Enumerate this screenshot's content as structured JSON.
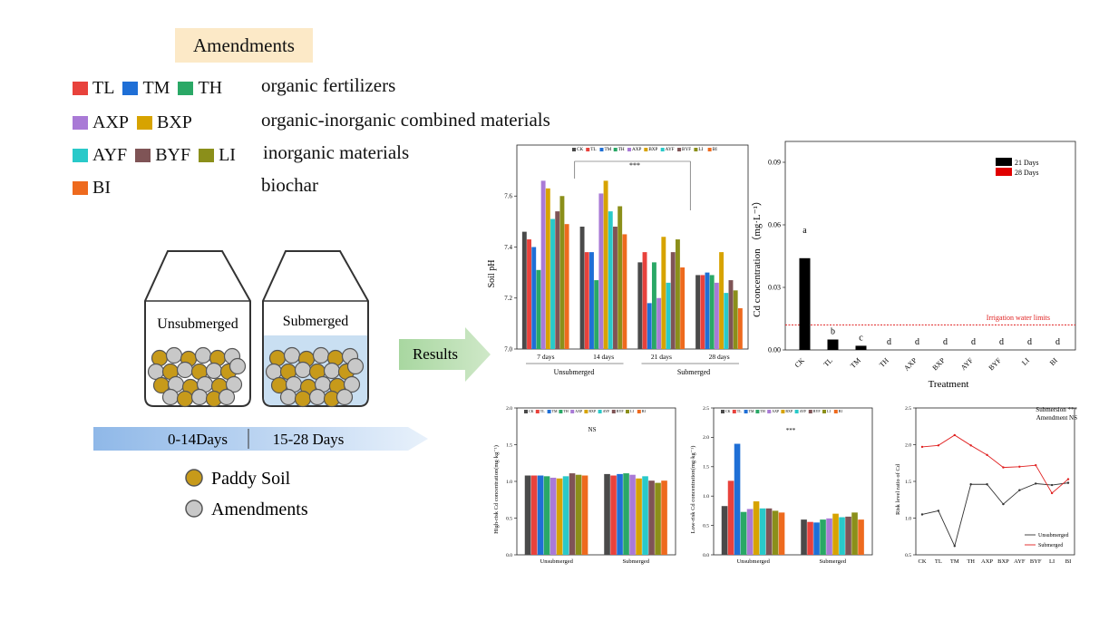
{
  "legend": {
    "title": "Amendments",
    "groups": [
      {
        "items": [
          {
            "label": "TL",
            "color": "#e8423c"
          },
          {
            "label": "TM",
            "color": "#1f6fd6"
          },
          {
            "label": "TH",
            "color": "#2aa866"
          }
        ],
        "description": "organic fertilizers"
      },
      {
        "items": [
          {
            "label": "AXP",
            "color": "#a97ad6"
          },
          {
            "label": "BXP",
            "color": "#d7a300"
          }
        ],
        "description": "organic-inorganic combined materials"
      },
      {
        "items": [
          {
            "label": "AYF",
            "color": "#29c9c9"
          },
          {
            "label": "BYF",
            "color": "#7f5456"
          },
          {
            "label": "LI",
            "color": "#8b8f1a"
          }
        ],
        "description": "inorganic materials"
      },
      {
        "items": [
          {
            "label": "BI",
            "color": "#ee6a1e"
          }
        ],
        "description": "biochar"
      }
    ]
  },
  "experiment": {
    "jar_left_label": "Unsubmerged",
    "jar_right_label": "Submerged",
    "timeline_left": "0-14Days",
    "timeline_right": "15-28 Days",
    "key_soil": "Paddy Soil",
    "key_amend": "Amendments",
    "results_label": "Results"
  },
  "chart_data": [
    {
      "type": "bar",
      "ylabel": "Soil pH",
      "ylim": [
        7.0,
        7.8
      ],
      "yticks": [
        "7.0",
        "7.2",
        "7.4",
        "7.6"
      ],
      "categories": [
        "7 days",
        "14 days",
        "21 days",
        "28 days"
      ],
      "group_labels": [
        "Unsubmerged",
        "Submerged"
      ],
      "significance": "***",
      "legend": [
        "CK",
        "TL",
        "TM",
        "TH",
        "AXP",
        "BXP",
        "AYF",
        "BYF",
        "LI",
        "BI"
      ],
      "series_values": [
        [
          7.46,
          7.43,
          7.4,
          7.31,
          7.66,
          7.63,
          7.51,
          7.54,
          7.6,
          7.49
        ],
        [
          7.48,
          7.38,
          7.38,
          7.27,
          7.61,
          7.66,
          7.54,
          7.48,
          7.56,
          7.45
        ],
        [
          7.34,
          7.38,
          7.18,
          7.34,
          7.2,
          7.44,
          7.26,
          7.38,
          7.43,
          7.32
        ],
        [
          7.29,
          7.29,
          7.3,
          7.29,
          7.26,
          7.38,
          7.22,
          7.27,
          7.23,
          7.16
        ]
      ]
    },
    {
      "type": "bar",
      "ylabel": "Cd concentration （mg·L⁻¹）",
      "xlabel": "Treatment",
      "ylim": [
        0,
        0.1
      ],
      "yticks": [
        "0.00",
        "0.03",
        "0.06",
        "0.09"
      ],
      "categories": [
        "CK",
        "TL",
        "TM",
        "TH",
        "AXP",
        "BXP",
        "AYF",
        "BYF",
        "LI",
        "BI"
      ],
      "series": [
        {
          "name": "21 Days",
          "values": [
            0.044,
            0.005,
            0.002,
            0,
            0,
            0,
            0,
            0,
            0,
            0
          ]
        },
        {
          "name": "28 Days",
          "values": [
            0,
            0,
            0,
            0,
            0,
            0,
            0,
            0,
            0,
            0
          ]
        }
      ],
      "letters": [
        "a",
        "b",
        "c",
        "d",
        "d",
        "d",
        "d",
        "d",
        "d",
        "d"
      ],
      "limit_label": "Irrigation water limits",
      "limit_value": 0.012
    },
    {
      "type": "bar",
      "ylabel": "High-risk Cd concentration(mg·kg⁻¹)",
      "ylim": [
        0,
        2.0
      ],
      "yticks": [
        "0.0",
        "0.5",
        "1.0",
        "1.5",
        "2.0"
      ],
      "categories": [
        "Unsubmerged",
        "Submerged"
      ],
      "significance": "NS",
      "series_values": [
        [
          1.08,
          1.08,
          1.08,
          1.07,
          1.05,
          1.04,
          1.07,
          1.11,
          1.09,
          1.08
        ],
        [
          1.1,
          1.08,
          1.1,
          1.11,
          1.09,
          1.04,
          1.07,
          1.01,
          0.98,
          1.01
        ]
      ]
    },
    {
      "type": "bar",
      "ylabel": "Low-risk Cd concentration(mg·kg⁻¹)",
      "ylim": [
        0,
        2.5
      ],
      "yticks": [
        "0.0",
        "0.5",
        "1.0",
        "1.5",
        "2.0",
        "2.5"
      ],
      "categories": [
        "Unsubmerged",
        "Submerged"
      ],
      "significance": "***",
      "series_values": [
        [
          0.83,
          1.26,
          1.89,
          0.73,
          0.78,
          0.91,
          0.79,
          0.79,
          0.75,
          0.72
        ],
        [
          0.6,
          0.56,
          0.55,
          0.6,
          0.62,
          0.7,
          0.64,
          0.65,
          0.72,
          0.6
        ]
      ]
    },
    {
      "type": "line",
      "ylabel": "Risk level ratio of Cd",
      "ylim": [
        0.5,
        2.5
      ],
      "yticks": [
        "0.5",
        "1.0",
        "1.5",
        "2.0",
        "2.5"
      ],
      "categories": [
        "CK",
        "TL",
        "TM",
        "TH",
        "AXP",
        "BXP",
        "AYF",
        "BYF",
        "LI",
        "BI"
      ],
      "series": [
        {
          "name": "Unsubmerged",
          "values": [
            1.05,
            1.1,
            0.62,
            1.46,
            1.46,
            1.19,
            1.38,
            1.47,
            1.45,
            1.48
          ]
        },
        {
          "name": "Submerged",
          "values": [
            1.97,
            1.99,
            2.13,
            1.99,
            1.86,
            1.69,
            1.7,
            1.72,
            1.34,
            1.53
          ]
        }
      ],
      "annotation": [
        "Submersion ***",
        "Amendment NS"
      ]
    }
  ]
}
